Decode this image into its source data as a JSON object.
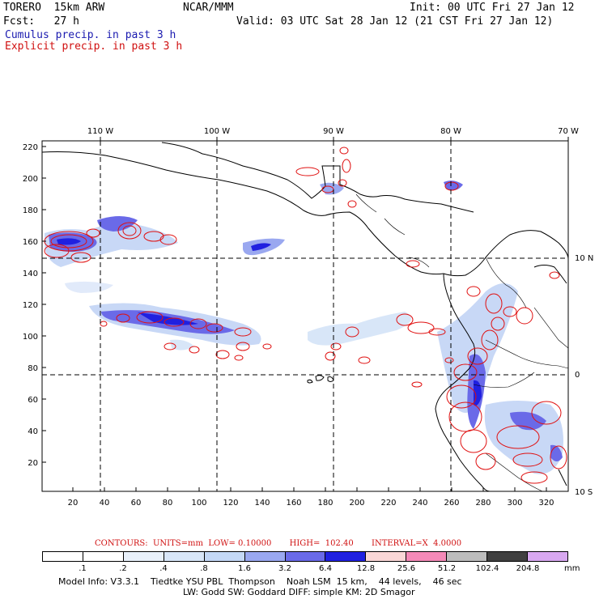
{
  "header": {
    "run_name": "TORERO  15km ARW",
    "org": "NCAR/MMM",
    "init": "Init: 00 UTC Fri 27 Jan 12",
    "fcst": "Fcst:   27 h",
    "valid": "Valid: 03 UTC Sat 28 Jan 12 (21 CST Fri 27 Jan 12)",
    "legend_cumulus": "Cumulus precip. in past 3 h",
    "legend_explicit": "Explicit precip. in past 3 h"
  },
  "axes": {
    "top_lon_labels": [
      "110 W",
      "100 W",
      "90 W",
      "80 W",
      "70 W"
    ],
    "right_lat_labels": [
      "10 N",
      "0",
      "10 S"
    ],
    "left_grid_labels": [
      "220",
      "200",
      "180",
      "160",
      "140",
      "120",
      "100",
      "80",
      "60",
      "40",
      "20"
    ],
    "bottom_grid_labels": [
      "20",
      "40",
      "60",
      "80",
      "100",
      "120",
      "140",
      "160",
      "180",
      "200",
      "220",
      "240",
      "260",
      "280",
      "300",
      "320"
    ]
  },
  "contours": {
    "text": "CONTOURS:  UNITS=mm  LOW= 0.10000       HIGH=  102.40       INTERVAL=X  4.0000"
  },
  "colorbar": {
    "thresholds": [
      ".1",
      ".2",
      ".4",
      ".8",
      "1.6",
      "3.2",
      "6.4",
      "12.8",
      "25.6",
      "51.2",
      "102.4",
      "204.8"
    ],
    "colors": [
      "#ffffff",
      "#ffffff",
      "#e8f0fa",
      "#d8e6f8",
      "#c4d8f6",
      "#9aa8f0",
      "#6a6ae8",
      "#2020e0",
      "#fad7d7",
      "#f48ab8",
      "#bdbdbd",
      "#404040",
      "#d8a8f0"
    ],
    "unit": "mm"
  },
  "footer": {
    "line1": "Model Info: V3.3.1    Tiedtke YSU PBL  Thompson    Noah LSM  15 km,    44 levels,    46 sec",
    "line2": "LW: Godd SW: Goddard DIFF: simple KM: 2D Smagor"
  }
}
